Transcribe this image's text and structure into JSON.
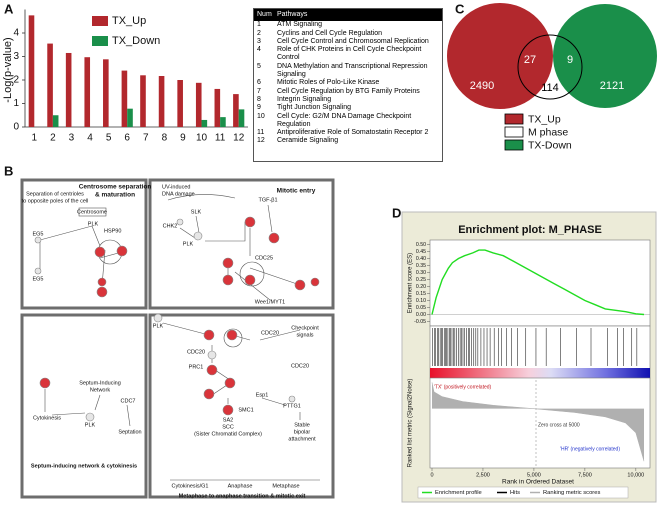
{
  "panel_labels": [
    "A",
    "B",
    "C",
    "D"
  ],
  "chart_data": [
    {
      "type": "bar",
      "y_label": "-Log(p-value)",
      "categories": [
        "1",
        "2",
        "3",
        "4",
        "5",
        "6",
        "7",
        "8",
        "9",
        "10",
        "11",
        "12"
      ],
      "series": [
        {
          "name": "TX_Up",
          "color": "#b2282d",
          "values": [
            4.75,
            3.55,
            3.15,
            2.97,
            2.88,
            2.4,
            2.2,
            2.17,
            2.0,
            1.88,
            1.62,
            1.4
          ]
        },
        {
          "name": "TX_Down",
          "color": "#1a8f4a",
          "values": [
            null,
            0.5,
            null,
            null,
            null,
            0.78,
            null,
            null,
            null,
            0.3,
            0.42,
            0.75
          ]
        }
      ],
      "ylim": [
        0,
        5
      ],
      "yticks": [
        0,
        1,
        2,
        3,
        4
      ],
      "legend": "upper-center"
    },
    {
      "type": "venn",
      "sets": [
        {
          "name": "TX_Up",
          "color": "#b2282d"
        },
        {
          "name": "M phase",
          "color": "#ffffff"
        },
        {
          "name": "TX-Down",
          "color": "#1a8f4a"
        }
      ],
      "values": [
        2490,
        27,
        114,
        9,
        2121
      ]
    },
    {
      "type": "gsea",
      "title": "Enrichment plot: M_PHASE",
      "y_label": "Enrichment score (ES)",
      "y2_label": "Ranked list metric (Signal2Noise)",
      "x_label": "Rank in Ordered Dataset",
      "xlim": [
        0,
        10400
      ],
      "xticks": [
        0,
        {
          "value": 2500,
          "label": "2,500"
        },
        {
          "value": 5000,
          "label": "5,000"
        },
        {
          "value": 7500,
          "label": "7,500"
        },
        {
          "value": 10000,
          "label": "10,000"
        }
      ],
      "ylim": [
        -0.075,
        0.525
      ],
      "yticks": [
        {
          "value": 0.5,
          "label": "0.50"
        },
        0.45,
        {
          "value": 0.4,
          "label": "0.40"
        },
        0.35,
        {
          "value": 0.3,
          "label": "0.30"
        },
        0.25,
        {
          "value": 0.2,
          "label": "0.20"
        },
        0.15,
        {
          "value": 0.1,
          "label": "0.10"
        },
        0.05,
        {
          "value": 0,
          "label": "0.00"
        },
        -0.05
      ],
      "y2lim": [
        -1.2,
        0.6
      ],
      "series": [
        {
          "name": "Enrichment profile",
          "color": "#22dd22",
          "x": [
            0,
            200,
            500,
            800,
            1000,
            1300,
            1600,
            2000,
            2300,
            2600,
            3000,
            3500,
            4000,
            4500,
            5000,
            5500,
            6000,
            6500,
            7000,
            7500,
            8000,
            8500,
            9000,
            9500,
            10000,
            10400
          ],
          "values": [
            0,
            0.12,
            0.25,
            0.33,
            0.37,
            0.4,
            0.42,
            0.44,
            0.46,
            0.46,
            0.44,
            0.42,
            0.38,
            0.34,
            0.3,
            0.26,
            0.22,
            0.18,
            0.14,
            0.1,
            0.07,
            0.04,
            0.03,
            0.02,
            0.005,
            0
          ]
        },
        {
          "name": "Hits",
          "color": "#000000",
          "x": [
            30,
            120,
            180,
            260,
            330,
            400,
            470,
            520,
            600,
            650,
            700,
            780,
            850,
            900,
            980,
            1050,
            1120,
            1200,
            1300,
            1380,
            1450,
            1520,
            1600,
            1700,
            1780,
            1850,
            1950,
            2050,
            2150,
            2250,
            2400,
            2550,
            2700,
            2850,
            3050,
            3250,
            3400,
            3650,
            3900,
            4200,
            4600,
            5100,
            5600,
            6300,
            7100,
            7800,
            8600,
            9100,
            9400,
            9800,
            10050
          ]
        },
        {
          "name": "Ranking metric scores",
          "color": "#b0b0b0",
          "axis": "y2",
          "x": [
            0,
            100,
            500,
            1500,
            3000,
            5000,
            7000,
            8500,
            9500,
            10000,
            10400
          ],
          "values": [
            0.55,
            0.35,
            0.25,
            0.15,
            0.07,
            0,
            -0.08,
            -0.17,
            -0.3,
            -0.5,
            -1.1
          ]
        }
      ],
      "annotations": [
        "'TX' (positively correlated)",
        "Zero cross at 5000",
        "'HR' (negatively correlated)"
      ]
    }
  ],
  "pathway_table": {
    "headers": [
      "Num",
      "Pathways"
    ],
    "rows": [
      [
        1,
        "ATM Signaling"
      ],
      [
        2,
        "Cyclins and Cell Cycle Regulation"
      ],
      [
        3,
        "Cell Cycle Control and Chromosomal Replication"
      ],
      [
        4,
        "Role of CHK Proteins in Cell Cycle Checkpoint Control"
      ],
      [
        5,
        "DNA Methylation and Transcriptional Repression Signaling"
      ],
      [
        6,
        "Mitotic Roles of Polo-Like Kinase"
      ],
      [
        7,
        "Cell Cycle Regulation by BTG Family Proteins"
      ],
      [
        8,
        "Integrin Signaling"
      ],
      [
        9,
        "Tight Junction Signaling"
      ],
      [
        10,
        "Cell Cycle: G2/M DNA Damage Checkpoint Regulation"
      ],
      [
        11,
        "Antiproliferative Role of Somatostatin Receptor 2"
      ],
      [
        12,
        "Ceramide Signaling"
      ]
    ]
  },
  "diagram": {
    "boxes": [
      {
        "title": [
          "Centrosome separation",
          "& maturation"
        ],
        "labels": [
          "Separation of centrioles",
          "to opposite poles of the cell",
          "Centrosome",
          "PLK",
          "HSP90",
          "EG5",
          "EG5"
        ]
      },
      {
        "title": [
          "Mitotic entry"
        ],
        "labels": [
          "UV-induced",
          "DNA damage",
          "TGF-β1",
          "SLK",
          "CHK2",
          "PLK",
          "CDC25",
          "Wee1/MYT1"
        ]
      },
      {
        "title": [
          "Septum-inducing network & cytokinesis"
        ],
        "labels": [
          "Septum-Inducing",
          "Network",
          "Cytokinesis",
          "PLK",
          "CDC7",
          "Septation"
        ]
      },
      {
        "title": [
          "Metaphase to anaphase transition & mitotic exit"
        ],
        "labels": [
          "PLK",
          "CDC20",
          "Checkpoint",
          "signals",
          "CDC20",
          "PRC1",
          "CDC20",
          "SMC1",
          "SA2",
          "SCC",
          "(Sister Chromatid Complex)",
          "Esp1",
          "PTTG1",
          "Stable",
          "bipolar",
          "attachment",
          "Cytokinesis/G1",
          "Anaphase",
          "Metaphase"
        ]
      }
    ]
  }
}
